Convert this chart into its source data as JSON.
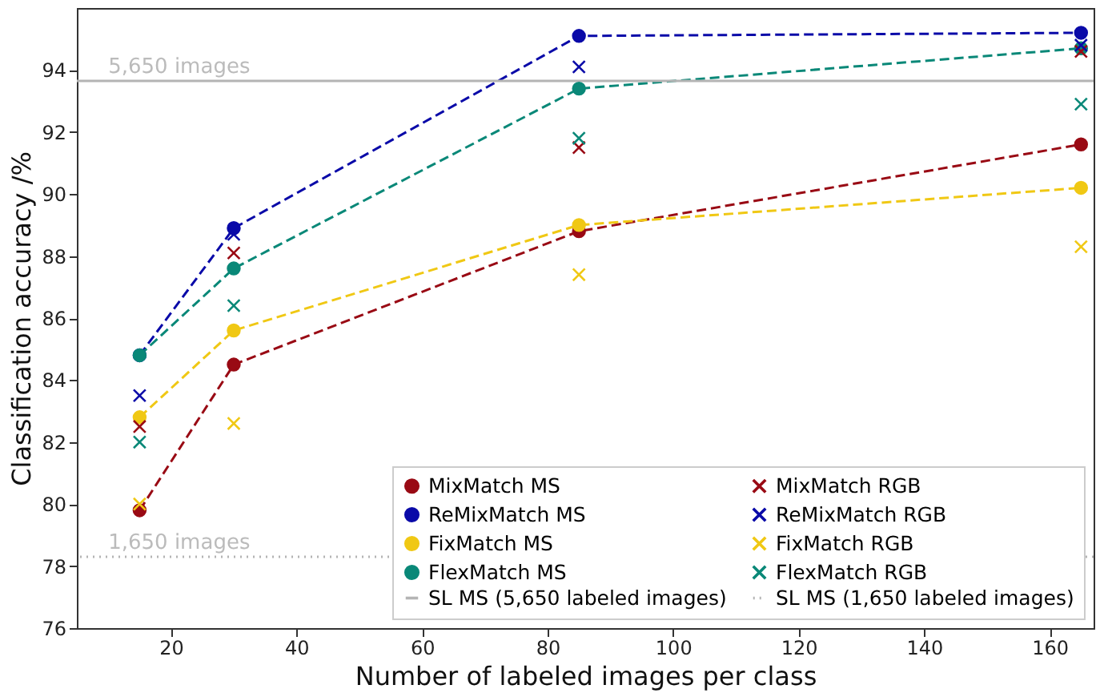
{
  "chart_data": {
    "type": "line",
    "xlabel": "Number of labeled images per class",
    "ylabel": "Classification accuracy /%",
    "x": [
      15,
      30,
      85,
      165
    ],
    "series": [
      {
        "name": "MixMatch MS",
        "marker": "circle",
        "line_style": "dashed",
        "color": "#990a14",
        "values": [
          79.8,
          84.5,
          88.8,
          91.6
        ]
      },
      {
        "name": "ReMixMatch MS",
        "marker": "circle",
        "line_style": "dashed",
        "color": "#0a0aa8",
        "values": [
          84.8,
          88.9,
          95.1,
          95.2
        ]
      },
      {
        "name": "FixMatch MS",
        "marker": "circle",
        "line_style": "dashed",
        "color": "#f0c814",
        "values": [
          82.8,
          85.6,
          89.0,
          90.2
        ]
      },
      {
        "name": "FlexMatch MS",
        "marker": "circle",
        "line_style": "dashed",
        "color": "#0a8878",
        "values": [
          84.8,
          87.6,
          93.4,
          94.7
        ]
      },
      {
        "name": "MixMatch RGB",
        "type": "scatter",
        "marker": "cross",
        "color": "#990a14",
        "values": [
          82.5,
          88.1,
          91.5,
          94.6
        ]
      },
      {
        "name": "ReMixMatch RGB",
        "type": "scatter",
        "marker": "cross",
        "color": "#0a0aa8",
        "values": [
          83.5,
          88.7,
          94.1,
          94.8
        ]
      },
      {
        "name": "FixMatch RGB",
        "type": "scatter",
        "marker": "cross",
        "color": "#f0c814",
        "values": [
          80.0,
          82.6,
          87.4,
          88.3
        ]
      },
      {
        "name": "FlexMatch RGB",
        "type": "scatter",
        "marker": "cross",
        "color": "#0a8878",
        "values": [
          82.0,
          86.4,
          91.8,
          92.9
        ]
      }
    ],
    "ref_lines": [
      {
        "axis": "y",
        "value": 93.65,
        "label": "SL MS (5,650 labeled images)",
        "color": "#b4b4b4",
        "line_style": "solid"
      },
      {
        "axis": "y",
        "value": 78.3,
        "label": "SL MS (1,650 labeled images)",
        "color": "#b4b4b4",
        "line_style": "dotted"
      }
    ],
    "annotations": [
      {
        "text": "5,650  images",
        "x": 10,
        "y": 93.65
      },
      {
        "text": "1,650  images",
        "x": 10,
        "y": 78.3
      }
    ],
    "xlim": [
      5,
      167
    ],
    "ylim": [
      76,
      96
    ],
    "xticks": [
      20,
      40,
      60,
      80,
      100,
      120,
      140,
      160
    ],
    "yticks": [
      76,
      78,
      80,
      82,
      84,
      86,
      88,
      90,
      92,
      94
    ],
    "grid": false,
    "legend": "bottom right"
  }
}
